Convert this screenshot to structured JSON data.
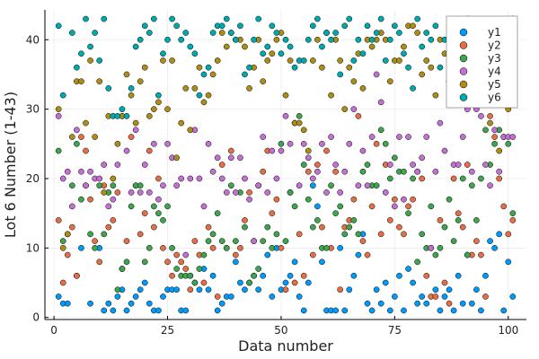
{
  "chart_data": {
    "type": "scatter",
    "title": "",
    "xlabel": "Data number",
    "ylabel": "Lot 6 Number (1-43)",
    "xlim": [
      -2,
      104
    ],
    "ylim": [
      -0.3,
      44.3
    ],
    "xticks": [
      0,
      25,
      50,
      75,
      100
    ],
    "yticks": [
      0,
      10,
      20,
      30,
      40
    ],
    "grid": true,
    "legend_position": "top-right",
    "series": [
      {
        "name": "y1",
        "color": "#009AFA",
        "x": [
          1,
          2,
          3,
          5,
          6,
          8,
          10,
          11,
          12,
          13,
          14,
          15,
          16,
          17,
          18,
          19,
          20,
          21,
          22,
          23,
          24,
          25,
          26,
          27,
          28,
          29,
          30,
          31,
          32,
          33,
          34,
          35,
          36,
          37,
          38,
          39,
          40,
          41,
          42,
          43,
          44,
          45,
          46,
          47,
          48,
          49,
          50,
          51,
          52,
          53,
          54,
          55,
          56,
          57,
          58,
          59,
          60,
          61,
          62,
          63,
          64,
          65,
          66,
          67,
          68,
          69,
          70,
          71,
          72,
          73,
          74,
          75,
          76,
          77,
          78,
          79,
          80,
          81,
          82,
          83,
          84,
          85,
          86,
          87,
          88,
          89,
          90,
          91,
          92,
          93,
          94,
          95,
          96,
          97,
          98,
          99,
          100,
          101
        ],
        "y": [
          3,
          2,
          2,
          6,
          10,
          2,
          10,
          1,
          2,
          1,
          3,
          4,
          1,
          2,
          3,
          4,
          5,
          2,
          1,
          1,
          3,
          4,
          4,
          4,
          1,
          1,
          6,
          5,
          4,
          7,
          4,
          6,
          1,
          2,
          3,
          3,
          8,
          5,
          4,
          5,
          6,
          4,
          6,
          9,
          3,
          10,
          4,
          5,
          6,
          8,
          3,
          1,
          5,
          19,
          16,
          8,
          1,
          1,
          1,
          10,
          1,
          4,
          6,
          9,
          12,
          2,
          1,
          4,
          2,
          5,
          1,
          3,
          6,
          1,
          7,
          5,
          2,
          3,
          2,
          10,
          4,
          1,
          3,
          4,
          1,
          6,
          2,
          9,
          2,
          4,
          1,
          6,
          11,
          10,
          12,
          1,
          8,
          3
        ]
      },
      {
        "name": "y2",
        "color": "#E36F47",
        "x": [
          1,
          2,
          3,
          4,
          5,
          6,
          7,
          8,
          9,
          10,
          11,
          12,
          13,
          14,
          15,
          16,
          17,
          18,
          19,
          20,
          21,
          22,
          23,
          24,
          25,
          26,
          27,
          28,
          29,
          30,
          31,
          32,
          33,
          34,
          35,
          36,
          37,
          38,
          39,
          40,
          41,
          42,
          43,
          44,
          45,
          46,
          47,
          48,
          49,
          50,
          51,
          52,
          53,
          54,
          55,
          56,
          57,
          58,
          59,
          60,
          61,
          62,
          63,
          64,
          65,
          66,
          67,
          68,
          69,
          70,
          71,
          72,
          73,
          74,
          75,
          76,
          77,
          78,
          79,
          80,
          81,
          82,
          83,
          84,
          85,
          86,
          87,
          88,
          89,
          90,
          91,
          92,
          93,
          94,
          95,
          96,
          97,
          98,
          99,
          100,
          101
        ],
        "y": [
          14,
          5,
          9,
          13,
          6,
          26,
          24,
          17,
          11,
          8,
          19,
          13,
          14,
          18,
          7,
          11,
          26,
          19,
          12,
          15,
          24,
          13,
          20,
          10,
          8,
          6,
          9,
          8,
          7,
          4,
          11,
          9,
          5,
          13,
          10,
          3,
          22,
          10,
          24,
          9,
          10,
          14,
          18,
          11,
          19,
          21,
          24,
          15,
          17,
          10,
          4,
          18,
          5,
          12,
          6,
          21,
          9,
          22,
          13,
          24,
          10,
          21,
          4,
          13,
          14,
          17,
          29,
          11,
          9,
          16,
          25,
          12,
          22,
          14,
          17,
          13,
          12,
          16,
          17,
          21,
          20,
          6,
          3,
          3,
          14,
          5,
          2,
          20,
          15,
          13,
          22,
          9,
          11,
          9,
          3,
          29,
          26,
          20,
          16,
          12,
          14
        ]
      },
      {
        "name": "y3",
        "color": "#3EA44E",
        "x": [
          1,
          2,
          3,
          4,
          5,
          6,
          7,
          8,
          9,
          10,
          11,
          12,
          13,
          14,
          15,
          16,
          17,
          18,
          19,
          20,
          21,
          22,
          23,
          24,
          25,
          26,
          27,
          28,
          29,
          30,
          31,
          32,
          33,
          34,
          35,
          36,
          37,
          38,
          39,
          40,
          41,
          42,
          43,
          44,
          45,
          46,
          47,
          48,
          49,
          50,
          51,
          52,
          53,
          54,
          55,
          56,
          57,
          58,
          59,
          60,
          61,
          62,
          63,
          64,
          65,
          66,
          67,
          68,
          69,
          70,
          71,
          72,
          73,
          74,
          75,
          76,
          77,
          78,
          79,
          80,
          81,
          82,
          83,
          84,
          85,
          86,
          87,
          88,
          89,
          90,
          91,
          92,
          93,
          94,
          95,
          96,
          97,
          98,
          99,
          100,
          101
        ],
        "y": [
          24,
          11,
          12,
          19,
          25,
          17,
          19,
          12,
          10,
          19,
          12,
          18,
          19,
          4,
          7,
          8,
          16,
          19,
          19,
          8,
          10,
          16,
          15,
          14,
          16,
          10,
          7,
          6,
          6,
          6,
          5,
          7,
          9,
          11,
          12,
          15,
          11,
          10,
          19,
          11,
          18,
          13,
          5,
          6,
          7,
          11,
          13,
          10,
          12,
          25,
          11,
          18,
          16,
          29,
          22,
          17,
          13,
          14,
          10,
          10,
          19,
          15,
          16,
          12,
          13,
          14,
          12,
          21,
          22,
          19,
          19,
          27,
          25,
          20,
          23,
          21,
          21,
          15,
          20,
          8,
          12,
          10,
          16,
          9,
          10,
          13,
          17,
          11,
          14,
          20,
          9,
          19,
          14,
          20,
          27,
          22,
          25,
          27,
          26,
          25,
          15
        ]
      },
      {
        "name": "y4",
        "color": "#C270D2",
        "x": [
          1,
          2,
          3,
          4,
          5,
          6,
          7,
          8,
          9,
          10,
          11,
          12,
          13,
          14,
          15,
          16,
          17,
          18,
          19,
          20,
          21,
          22,
          23,
          24,
          25,
          26,
          27,
          28,
          29,
          30,
          31,
          32,
          33,
          34,
          35,
          36,
          37,
          38,
          39,
          40,
          41,
          42,
          43,
          44,
          45,
          46,
          47,
          48,
          49,
          50,
          51,
          52,
          53,
          54,
          55,
          56,
          57,
          58,
          59,
          60,
          61,
          62,
          63,
          64,
          65,
          66,
          67,
          68,
          69,
          70,
          71,
          72,
          73,
          74,
          75,
          76,
          77,
          78,
          79,
          80,
          81,
          82,
          83,
          84,
          85,
          86,
          87,
          88,
          89,
          90,
          91,
          92,
          93,
          94,
          95,
          96,
          97,
          98,
          99,
          100,
          101
        ],
        "y": [
          29,
          20,
          21,
          16,
          27,
          21,
          19,
          21,
          20,
          20,
          22,
          16,
          17,
          22,
          29,
          24,
          18,
          27,
          18,
          22,
          18,
          25,
          17,
          19,
          25,
          23,
          19,
          20,
          9,
          20,
          27,
          20,
          16,
          25,
          21,
          23,
          20,
          18,
          23,
          18,
          23,
          20,
          17,
          11,
          19,
          26,
          18,
          24,
          20,
          24,
          29,
          25,
          28,
          19,
          25,
          23,
          20,
          21,
          25,
          18,
          26,
          22,
          18,
          21,
          25,
          30,
          19,
          24,
          19,
          26,
          35,
          31,
          18,
          22,
          16,
          26,
          17,
          26,
          22,
          21,
          23,
          26,
          10,
          21,
          28,
          24,
          34,
          22,
          22,
          26,
          30,
          21,
          30,
          29,
          22,
          19,
          27,
          21,
          26,
          26,
          26
        ]
      },
      {
        "name": "y5",
        "color": "#AC8D18",
        "x": [
          1,
          2,
          3,
          4,
          5,
          6,
          7,
          8,
          9,
          10,
          11,
          12,
          13,
          14,
          15,
          16,
          17,
          18,
          19,
          20,
          21,
          22,
          23,
          24,
          25,
          26,
          27,
          28,
          29,
          30,
          31,
          32,
          33,
          34,
          35,
          36,
          37,
          38,
          39,
          40,
          41,
          42,
          43,
          44,
          45,
          46,
          47,
          48,
          49,
          50,
          51,
          52,
          53,
          54,
          55,
          56,
          57,
          58,
          59,
          60,
          61,
          62,
          63,
          64,
          65,
          66,
          67,
          68,
          69,
          70,
          71,
          72,
          73,
          74,
          75,
          76,
          77,
          78,
          79,
          80,
          81,
          82,
          83,
          84,
          85,
          86,
          87,
          88,
          89,
          90,
          91,
          92,
          93,
          94,
          95,
          96,
          97,
          98,
          99,
          100,
          101
        ],
        "y": [
          30,
          10,
          12,
          26,
          34,
          34,
          28,
          37,
          26,
          34,
          18,
          29,
          20,
          25,
          29,
          35,
          32,
          28,
          34,
          36,
          29,
          30,
          31,
          37,
          30,
          37,
          23,
          28,
          33,
          27,
          33,
          36,
          31,
          32,
          35,
          37,
          41,
          39,
          41,
          40,
          40,
          39,
          33,
          36,
          40,
          34,
          37,
          38,
          40,
          41,
          32,
          37,
          28,
          28,
          27,
          24,
          37,
          40,
          36,
          41,
          32,
          40,
          37,
          30,
          36,
          34,
          38,
          33,
          40,
          39,
          40,
          41,
          40,
          34,
          37,
          37,
          39,
          42,
          42,
          41,
          35,
          37,
          36,
          32,
          40,
          38,
          40,
          38,
          40,
          41,
          41,
          42,
          39,
          41,
          34,
          28,
          40,
          24,
          40,
          30,
          37
        ]
      },
      {
        "name": "y6",
        "color": "#00A9AD",
        "x": [
          1,
          2,
          4,
          5,
          6,
          7,
          8,
          9,
          10,
          11,
          12,
          13,
          14,
          15,
          16,
          17,
          18,
          19,
          20,
          21,
          22,
          23,
          24,
          25,
          26,
          27,
          28,
          29,
          30,
          31,
          32,
          33,
          34,
          35,
          36,
          37,
          38,
          39,
          40,
          41,
          42,
          43,
          44,
          45,
          46,
          47,
          48,
          49,
          50,
          51,
          52,
          53,
          54,
          55,
          56,
          57,
          58,
          59,
          60,
          61,
          62,
          63,
          64,
          65,
          66,
          67,
          68,
          69,
          70,
          71,
          72,
          73,
          74,
          75,
          76,
          77,
          78,
          79,
          80,
          81,
          82,
          83,
          84,
          85,
          86,
          87,
          88,
          89,
          90,
          91,
          92,
          93,
          94,
          95,
          96,
          97,
          98,
          99,
          100,
          101
        ],
        "y": [
          42,
          32,
          41,
          36,
          38,
          43,
          39,
          41,
          37,
          43,
          33,
          29,
          29,
          30,
          29,
          33,
          39,
          40,
          42,
          41,
          43,
          32,
          38,
          40,
          43,
          42,
          40,
          41,
          39,
          38,
          32,
          35,
          36,
          41,
          42,
          42,
          43,
          41,
          40,
          42,
          35,
          36,
          40,
          43,
          38,
          39,
          42,
          41,
          38,
          40,
          39,
          36,
          37,
          37,
          40,
          42,
          43,
          39,
          41,
          40,
          41,
          35,
          42,
          43,
          37,
          40,
          38,
          42,
          40,
          41,
          43,
          37,
          40,
          42,
          41,
          38,
          36,
          33,
          43,
          39,
          41,
          40,
          42,
          36,
          40,
          38,
          41,
          39,
          42,
          43,
          37,
          40,
          41,
          38,
          42,
          40,
          42,
          39,
          42,
          43
        ]
      }
    ]
  }
}
